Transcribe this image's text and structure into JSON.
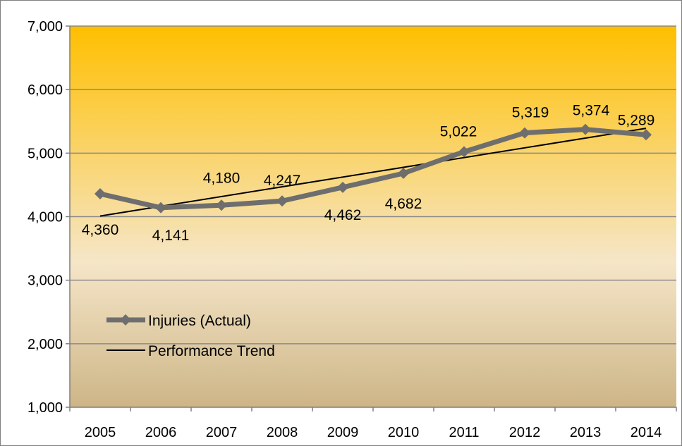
{
  "chart_data": {
    "type": "line",
    "title": "",
    "xlabel": "",
    "ylabel": "",
    "categories": [
      "2005",
      "2006",
      "2007",
      "2008",
      "2009",
      "2010",
      "2011",
      "2012",
      "2013",
      "2014"
    ],
    "ylim": [
      1000,
      7000
    ],
    "yticks": [
      1000,
      2000,
      3000,
      4000,
      5000,
      6000,
      7000
    ],
    "ytick_labels": [
      "1,000",
      "2,000",
      "3,000",
      "4,000",
      "5,000",
      "6,000",
      "7,000"
    ],
    "grid": "horizontal",
    "legend_position": "lower-left",
    "series": [
      {
        "name": "Injuries (Actual)",
        "values": [
          4360,
          4141,
          4180,
          4247,
          4462,
          4682,
          5022,
          5319,
          5374,
          5289
        ],
        "data_labels": [
          "4,360",
          "4,141",
          "4,180",
          "4,247",
          "4,462",
          "4,682",
          "5,022",
          "5,319",
          "5,374",
          "5,289"
        ],
        "color": "#6e6e6e",
        "marker": "diamond"
      },
      {
        "name": "Performance Trend",
        "start": 4010,
        "end": 5390,
        "color": "#000000"
      }
    ],
    "background_gradient": [
      "#ffbf00",
      "#f5e6c8",
      "#cdb587"
    ]
  }
}
